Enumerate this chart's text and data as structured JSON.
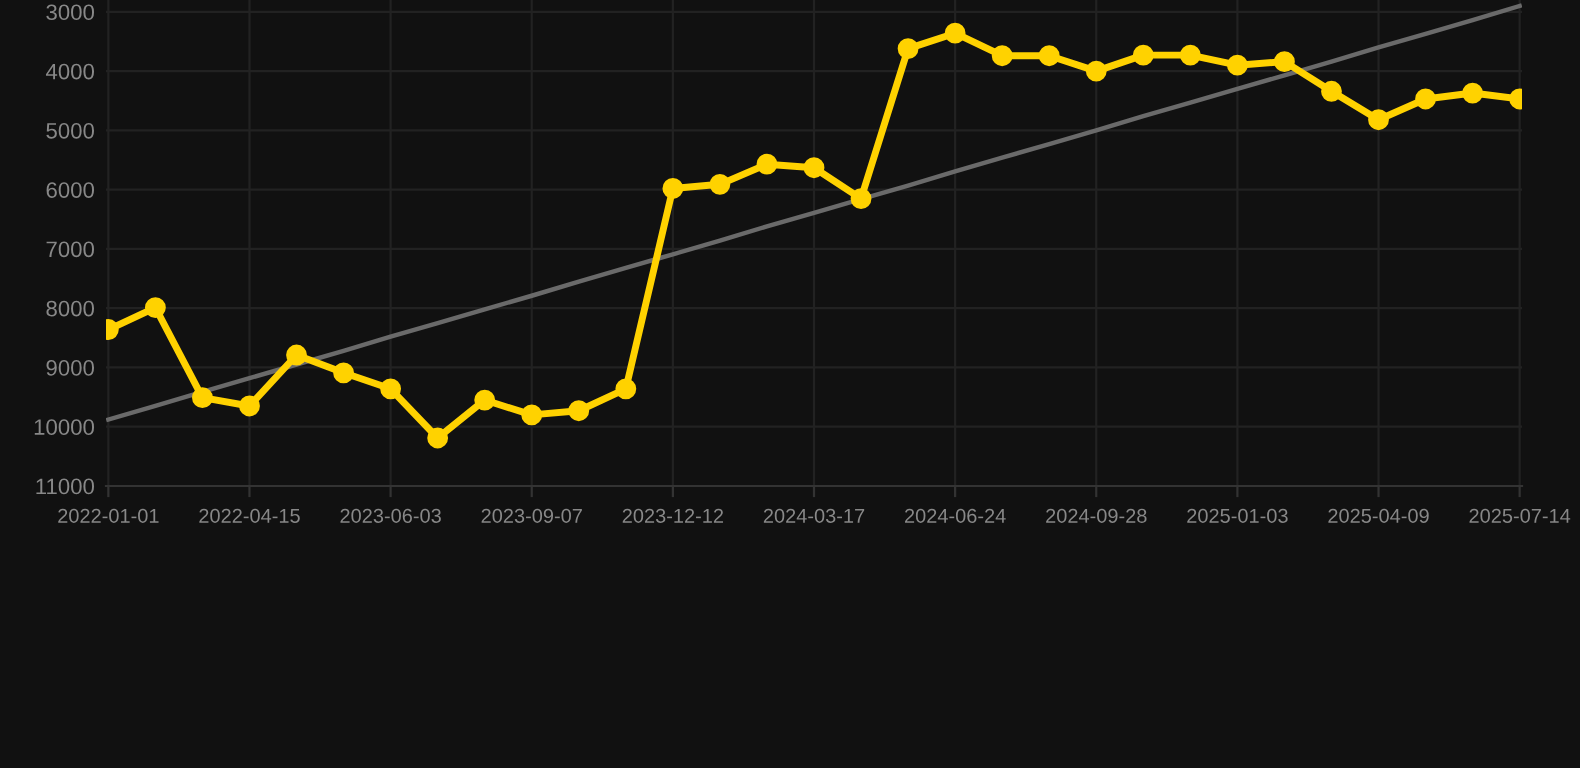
{
  "chart_data": {
    "type": "line",
    "categories": [
      "2022-01-01",
      null,
      null,
      "2022-04-15",
      null,
      null,
      "2023-06-03",
      null,
      null,
      "2023-09-07",
      null,
      null,
      "2023-12-12",
      null,
      null,
      "2024-03-17",
      null,
      null,
      "2024-06-24",
      null,
      null,
      "2024-09-28",
      null,
      null,
      "2025-01-03",
      null,
      null,
      "2025-04-09",
      null,
      null,
      "2025-07-14"
    ],
    "series": [
      {
        "color": "#ffd200",
        "marker": "circle",
        "values": [
          8360,
          7990,
          9510,
          9650,
          8790,
          9090,
          9360,
          10190,
          9550,
          9800,
          9730,
          9360,
          5980,
          5910,
          5570,
          5630,
          6150,
          3620,
          3360,
          3740,
          3740,
          4000,
          3730,
          3730,
          3900,
          3840,
          4340,
          4820,
          4470,
          4370,
          4470
        ]
      },
      {
        "type": "line",
        "color": "#6a6a6a",
        "marker": "none",
        "values": [
          9880,
          9650,
          9410,
          9180,
          8950,
          8720,
          8480,
          8250,
          8020,
          7790,
          7550,
          7320,
          7090,
          6860,
          6620,
          6390,
          6160,
          5930,
          5690,
          5460,
          5230,
          5000,
          4760,
          4530,
          4300,
          4070,
          3840,
          3600,
          3370,
          3140,
          2900
        ]
      }
    ],
    "ylim": [
      11000,
      2800
    ],
    "yticks": [
      3000,
      4000,
      5000,
      6000,
      7000,
      8000,
      9000,
      10000,
      11000
    ],
    "grid": true,
    "line_style": "solid"
  }
}
